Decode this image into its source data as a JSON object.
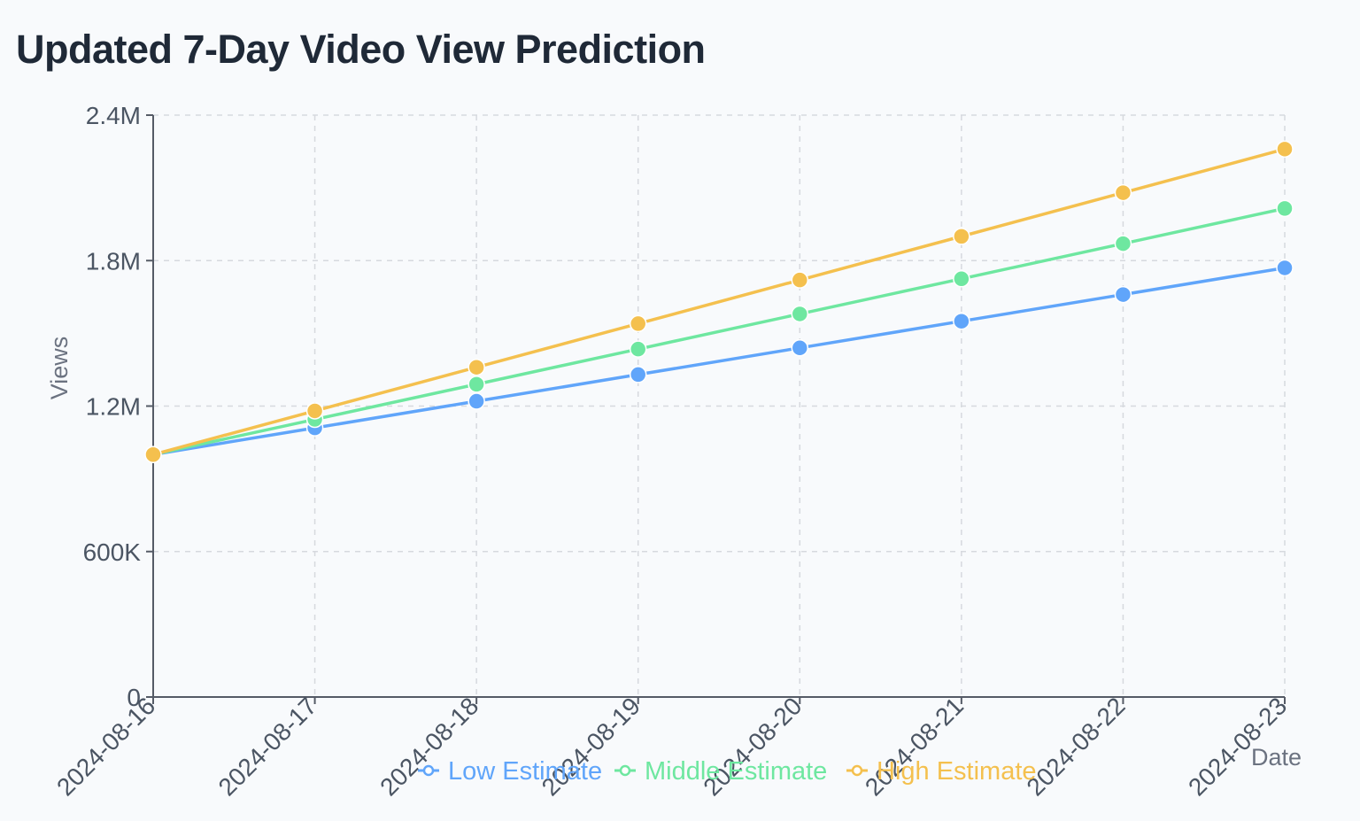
{
  "title": "Updated 7-Day Video View Prediction",
  "chart_data": {
    "type": "line",
    "title": "Updated 7-Day Video View Prediction",
    "xlabel": "Date",
    "ylabel": "Views",
    "x": [
      "2024-08-16",
      "2024-08-17",
      "2024-08-18",
      "2024-08-19",
      "2024-08-20",
      "2024-08-21",
      "2024-08-22",
      "2024-08-23"
    ],
    "ylim": [
      0,
      2400000
    ],
    "yticks": [
      0,
      600000,
      1200000,
      1800000,
      2400000
    ],
    "ytick_labels": [
      "0",
      "600K",
      "1.2M",
      "1.8M",
      "2.4M"
    ],
    "grid": true,
    "legend_position": "bottom",
    "series": [
      {
        "name": "Low Estimate",
        "color": "#60a5fa",
        "values": [
          1000000,
          1110000,
          1220000,
          1330000,
          1440000,
          1550000,
          1660000,
          1770000
        ]
      },
      {
        "name": "Middle Estimate",
        "color": "#6ee7a0",
        "values": [
          1000000,
          1145000,
          1290000,
          1435000,
          1580000,
          1725000,
          1870000,
          2015000
        ]
      },
      {
        "name": "High Estimate",
        "color": "#f4c04e",
        "values": [
          1000000,
          1180000,
          1360000,
          1540000,
          1720000,
          1900000,
          2080000,
          2260000
        ]
      }
    ]
  }
}
